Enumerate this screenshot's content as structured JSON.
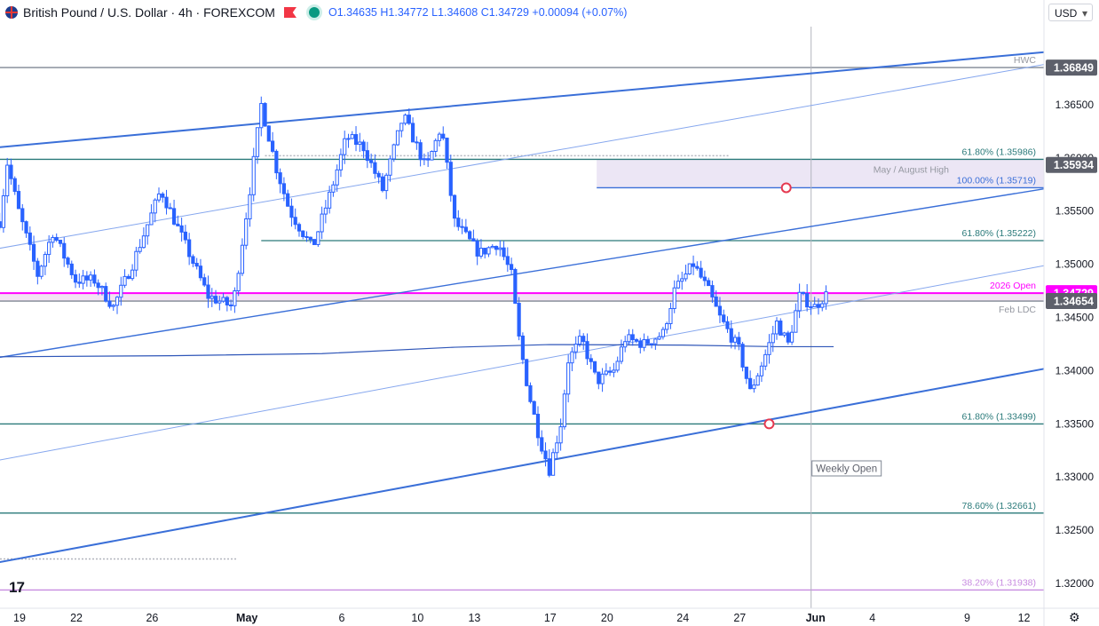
{
  "header": {
    "title": "British Pound / U.S. Dollar · 4h · FOREXCOM",
    "open": "O1.34635",
    "high": "H1.34772",
    "low": "L1.34608",
    "close": "C1.34729",
    "change": "+0.00094 (+0.07%)"
  },
  "currency_button": "USD",
  "logo_text": "17",
  "settings_icon": "gear-icon",
  "colors": {
    "up": "#2962ff",
    "down": "#2962ff",
    "channel": "#3a6fd8",
    "teal": "#2a7a7a",
    "magenta": "#ff00ff",
    "gray": "#7f8793"
  },
  "chart_data": {
    "type": "candlestick",
    "symbol": "GBPUSD",
    "timeframe": "4h",
    "ylim": [
      1.3185,
      1.3715
    ],
    "y_ticks": [
      "1.36500",
      "1.36000",
      "1.35500",
      "1.35000",
      "1.34500",
      "1.34000",
      "1.33500",
      "1.33000",
      "1.32500",
      "1.32000"
    ],
    "x_ticks": [
      {
        "label": "19",
        "day": 0
      },
      {
        "label": "22",
        "day": 3
      },
      {
        "label": "26",
        "day": 7
      },
      {
        "label": "May",
        "day": 12
      },
      {
        "label": "6",
        "day": 17
      },
      {
        "label": "10",
        "day": 21
      },
      {
        "label": "13",
        "day": 24
      },
      {
        "label": "17",
        "day": 28
      },
      {
        "label": "20",
        "day": 31
      },
      {
        "label": "24",
        "day": 35
      },
      {
        "label": "27",
        "day": 38
      },
      {
        "label": "Jun",
        "day": 42
      },
      {
        "label": "4",
        "day": 45
      },
      {
        "label": "9",
        "day": 50
      },
      {
        "label": "12",
        "day": 53
      }
    ],
    "price_badges": [
      {
        "value": "1.36849",
        "price": 1.36849,
        "style": "gray"
      },
      {
        "value": "1.35934",
        "price": 1.35934,
        "style": "gray"
      },
      {
        "value": "1.34729",
        "price": 1.34729,
        "style": "magenta"
      },
      {
        "value": "1.34654",
        "price": 1.34654,
        "style": "gray"
      }
    ],
    "levels": [
      {
        "label": "HWC",
        "price": 1.36849,
        "color": "gray",
        "start_day": -1
      },
      {
        "label": "61.80% (1.35986)",
        "price": 1.35986,
        "color": "teal",
        "start_day": -1
      },
      {
        "label": "100.00% (1.35719)",
        "price": 1.35719,
        "color": "blue",
        "start_day": 30.5
      },
      {
        "label": "61.80% (1.35222)",
        "price": 1.35222,
        "color": "teal",
        "start_day": 12.8
      },
      {
        "label": "2026 Open",
        "price": 1.34729,
        "color": "magenta",
        "start_day": -1
      },
      {
        "label": "Feb LDC",
        "price": 1.34654,
        "color": "gray",
        "start_day": -1
      },
      {
        "label": "61.80% (1.33499)",
        "price": 1.33499,
        "color": "teal",
        "start_day": -1
      },
      {
        "label": "78.60% (1.32661)",
        "price": 1.32661,
        "color": "teal",
        "start_day": -1
      },
      {
        "label": "38.20% (1.31938)",
        "price": 1.31938,
        "color": "violet",
        "start_day": -1
      }
    ],
    "zone": {
      "label": "May / August High",
      "from_day": 30.5,
      "to_day": 54.5,
      "low": 1.35719,
      "high": 1.35986
    },
    "annotations": [
      {
        "label": "Weekly Open",
        "day": 42
      }
    ],
    "markers": [
      {
        "day": 40.5,
        "price": 1.35719
      },
      {
        "day": 39.6,
        "price": 1.33499
      }
    ],
    "dotted_levels": [
      {
        "price": 1.3602,
        "from_day": 13,
        "to_day": 37.5
      },
      {
        "price": 1.3223,
        "from_day": -1,
        "to_day": 11.5
      }
    ],
    "channel_lines": [
      {
        "kind": "upper",
        "p1": {
          "day": -1,
          "price": 1.361
        },
        "p2": {
          "day": 54.5,
          "price": 1.37
        },
        "width": 2
      },
      {
        "kind": "mid",
        "p1": {
          "day": -1,
          "price": 1.34125
        },
        "p2": {
          "day": 54.5,
          "price": 1.3572
        },
        "width": 1.4
      },
      {
        "kind": "lower",
        "p1": {
          "day": -1,
          "price": 1.322
        },
        "p2": {
          "day": 54.5,
          "price": 1.3403
        },
        "width": 2
      },
      {
        "kind": "inner-upper",
        "p1": {
          "day": -1,
          "price": 1.3515
        },
        "p2": {
          "day": 54.5,
          "price": 1.3689
        },
        "width": 1
      },
      {
        "kind": "inner-lower",
        "p1": {
          "day": -1,
          "price": 1.3316
        },
        "p2": {
          "day": 54.5,
          "price": 1.35
        },
        "width": 1
      }
    ],
    "moving_average": [
      {
        "day": -1,
        "price": 1.3413
      },
      {
        "day": 8,
        "price": 1.3414
      },
      {
        "day": 16,
        "price": 1.3416
      },
      {
        "day": 23,
        "price": 1.3422
      },
      {
        "day": 28,
        "price": 1.34245
      },
      {
        "day": 35,
        "price": 1.3424
      },
      {
        "day": 40,
        "price": 1.34225
      },
      {
        "day": 43,
        "price": 1.34225
      }
    ],
    "key_points": [
      {
        "day": -1,
        "price": 1.354
      },
      {
        "day": -0.6,
        "price": 1.3595
      },
      {
        "day": 0,
        "price": 1.355
      },
      {
        "day": 1,
        "price": 1.349
      },
      {
        "day": 1.8,
        "price": 1.353
      },
      {
        "day": 3,
        "price": 1.3485
      },
      {
        "day": 4,
        "price": 1.3485
      },
      {
        "day": 5,
        "price": 1.346
      },
      {
        "day": 6,
        "price": 1.35
      },
      {
        "day": 7.5,
        "price": 1.357
      },
      {
        "day": 8.5,
        "price": 1.353
      },
      {
        "day": 10,
        "price": 1.347
      },
      {
        "day": 11.3,
        "price": 1.346
      },
      {
        "day": 12.2,
        "price": 1.357
      },
      {
        "day": 12.8,
        "price": 1.365
      },
      {
        "day": 13.6,
        "price": 1.359
      },
      {
        "day": 14.3,
        "price": 1.355
      },
      {
        "day": 15.5,
        "price": 1.3515
      },
      {
        "day": 16.5,
        "price": 1.357
      },
      {
        "day": 17.3,
        "price": 1.362
      },
      {
        "day": 18.2,
        "price": 1.361
      },
      {
        "day": 19.2,
        "price": 1.357
      },
      {
        "day": 20.3,
        "price": 1.364
      },
      {
        "day": 21.5,
        "price": 1.359
      },
      {
        "day": 22.3,
        "price": 1.363
      },
      {
        "day": 23,
        "price": 1.354
      },
      {
        "day": 24.3,
        "price": 1.351
      },
      {
        "day": 25.3,
        "price": 1.352
      },
      {
        "day": 26,
        "price": 1.349
      },
      {
        "day": 26.4,
        "price": 1.343
      },
      {
        "day": 26.9,
        "price": 1.338
      },
      {
        "day": 27.5,
        "price": 1.3335
      },
      {
        "day": 28,
        "price": 1.3307
      },
      {
        "day": 28.6,
        "price": 1.335
      },
      {
        "day": 29,
        "price": 1.341
      },
      {
        "day": 29.7,
        "price": 1.343
      },
      {
        "day": 30.5,
        "price": 1.339
      },
      {
        "day": 31.4,
        "price": 1.34
      },
      {
        "day": 32,
        "price": 1.343
      },
      {
        "day": 33,
        "price": 1.3425
      },
      {
        "day": 34,
        "price": 1.3435
      },
      {
        "day": 34.6,
        "price": 1.3475
      },
      {
        "day": 35.6,
        "price": 1.35
      },
      {
        "day": 36.4,
        "price": 1.3475
      },
      {
        "day": 37,
        "price": 1.345
      },
      {
        "day": 38,
        "price": 1.342
      },
      {
        "day": 38.6,
        "price": 1.338
      },
      {
        "day": 39.3,
        "price": 1.341
      },
      {
        "day": 40,
        "price": 1.3445
      },
      {
        "day": 40.6,
        "price": 1.3425
      },
      {
        "day": 41.2,
        "price": 1.347
      },
      {
        "day": 42,
        "price": 1.346
      },
      {
        "day": 42.7,
        "price": 1.3473
      }
    ]
  }
}
